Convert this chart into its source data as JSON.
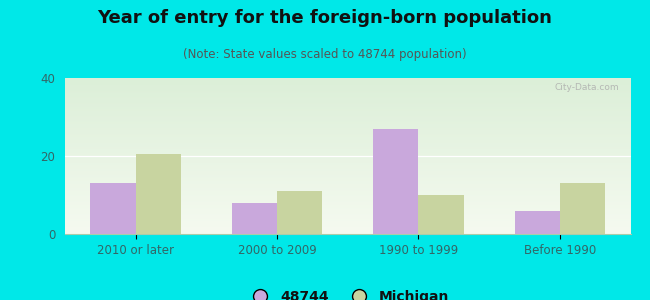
{
  "title": "Year of entry for the foreign-born population",
  "subtitle": "(Note: State values scaled to 48744 population)",
  "categories": [
    "2010 or later",
    "2000 to 2009",
    "1990 to 1999",
    "Before 1990"
  ],
  "values_48744": [
    13,
    8,
    27,
    6
  ],
  "values_michigan": [
    20.5,
    11,
    10,
    13
  ],
  "bar_color_48744": "#c9a8dc",
  "bar_color_michigan": "#c8d4a0",
  "background_outer": "#00e8e8",
  "background_inner": "#e8f2e0",
  "ylim": [
    0,
    40
  ],
  "yticks": [
    0,
    20,
    40
  ],
  "bar_width": 0.32,
  "legend_label_48744": "48744",
  "legend_label_michigan": "Michigan",
  "title_fontsize": 13,
  "subtitle_fontsize": 8.5,
  "tick_fontsize": 8.5,
  "legend_fontsize": 10,
  "watermark": "City-Data.com"
}
